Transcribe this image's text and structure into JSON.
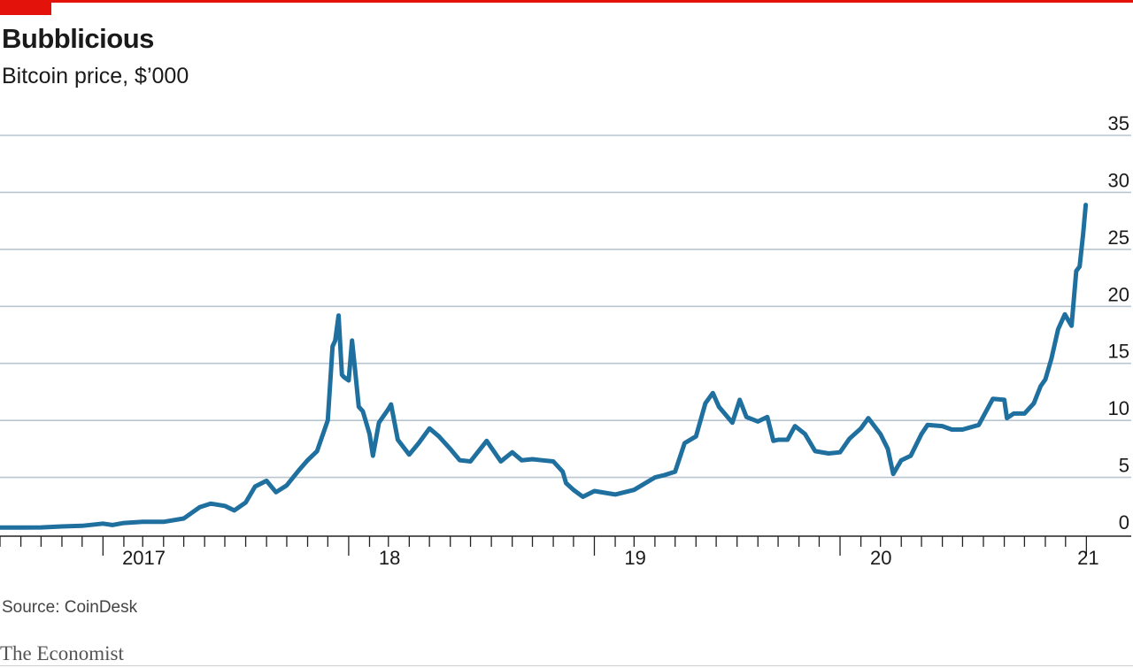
{
  "header": {
    "title": "Bubblicious",
    "subtitle": "Bitcoin price, $’000"
  },
  "footer": {
    "source": "Source: CoinDesk",
    "brand": "The Economist"
  },
  "colors": {
    "accent": "#e3120b",
    "line": "#1f6f9f",
    "grid": "#b9c6d0",
    "axis": "#222222"
  },
  "chart_data": {
    "type": "line",
    "title": "Bubblicious",
    "subtitle": "Bitcoin price, $’000",
    "ylabel": "",
    "xlabel": "",
    "ylim": [
      0,
      35
    ],
    "y_ticks": [
      0,
      5,
      10,
      15,
      20,
      25,
      30,
      35
    ],
    "y_tick_labels": [
      "0",
      "5",
      "10",
      "15",
      "20",
      "25",
      "30",
      "35"
    ],
    "x_range": [
      "2016-08-01",
      "2021-01-15"
    ],
    "x_ticks": [
      "2017-01-01",
      "2018-01-01",
      "2019-01-01",
      "2020-01-01",
      "2021-01-01"
    ],
    "x_tick_labels": [
      "2017",
      "18",
      "19",
      "20",
      "21"
    ],
    "grid": true,
    "legend": "none",
    "series": [
      {
        "x": [
          "2016-08-01",
          "2016-09-01",
          "2016-10-01",
          "2016-11-01",
          "2016-12-01",
          "2017-01-01",
          "2017-01-15",
          "2017-02-01",
          "2017-03-01",
          "2017-04-01",
          "2017-05-01",
          "2017-05-25",
          "2017-06-10",
          "2017-07-01",
          "2017-07-15",
          "2017-08-01",
          "2017-08-15",
          "2017-09-01",
          "2017-09-15",
          "2017-10-01",
          "2017-10-20",
          "2017-11-01",
          "2017-11-15",
          "2017-12-01",
          "2017-12-08",
          "2017-12-12",
          "2017-12-17",
          "2017-12-22",
          "2017-12-25",
          "2018-01-01",
          "2018-01-06",
          "2018-01-10",
          "2018-01-16",
          "2018-01-22",
          "2018-02-01",
          "2018-02-06",
          "2018-02-15",
          "2018-03-01",
          "2018-03-05",
          "2018-03-15",
          "2018-04-01",
          "2018-04-15",
          "2018-05-01",
          "2018-05-15",
          "2018-06-01",
          "2018-06-15",
          "2018-07-01",
          "2018-07-25",
          "2018-08-15",
          "2018-09-01",
          "2018-09-15",
          "2018-10-01",
          "2018-10-15",
          "2018-11-01",
          "2018-11-15",
          "2018-11-20",
          "2018-12-01",
          "2018-12-15",
          "2019-01-01",
          "2019-02-01",
          "2019-03-01",
          "2019-04-01",
          "2019-04-15",
          "2019-05-01",
          "2019-05-15",
          "2019-06-01",
          "2019-06-15",
          "2019-06-26",
          "2019-07-05",
          "2019-07-15",
          "2019-07-25",
          "2019-08-05",
          "2019-08-15",
          "2019-09-01",
          "2019-09-15",
          "2019-09-24",
          "2019-10-01",
          "2019-10-15",
          "2019-10-26",
          "2019-11-10",
          "2019-11-25",
          "2019-12-15",
          "2020-01-01",
          "2020-01-15",
          "2020-02-01",
          "2020-02-12",
          "2020-03-01",
          "2020-03-12",
          "2020-03-20",
          "2020-04-01",
          "2020-04-15",
          "2020-05-01",
          "2020-05-10",
          "2020-06-01",
          "2020-06-15",
          "2020-07-01",
          "2020-07-25",
          "2020-08-15",
          "2020-09-01",
          "2020-09-05",
          "2020-09-15",
          "2020-10-01",
          "2020-10-15",
          "2020-10-25",
          "2020-11-01",
          "2020-11-10",
          "2020-11-20",
          "2020-11-30",
          "2020-12-10",
          "2020-12-17",
          "2020-12-22",
          "2020-12-27",
          "2020-12-31"
        ],
        "values": [
          0.6,
          0.6,
          0.61,
          0.7,
          0.75,
          0.95,
          0.82,
          1.0,
          1.1,
          1.1,
          1.4,
          2.4,
          2.7,
          2.5,
          2.1,
          2.8,
          4.2,
          4.7,
          3.7,
          4.3,
          5.7,
          6.5,
          7.3,
          10.0,
          16.5,
          17.0,
          19.2,
          14.0,
          13.8,
          13.5,
          17.0,
          14.7,
          11.2,
          10.8,
          8.8,
          6.9,
          9.8,
          11.0,
          11.4,
          8.3,
          7.0,
          8.0,
          9.3,
          8.6,
          7.5,
          6.5,
          6.4,
          8.2,
          6.4,
          7.2,
          6.5,
          6.6,
          6.5,
          6.4,
          5.5,
          4.5,
          3.9,
          3.3,
          3.8,
          3.5,
          3.9,
          5.0,
          5.2,
          5.5,
          8.0,
          8.6,
          11.5,
          12.4,
          11.2,
          10.5,
          9.8,
          11.8,
          10.3,
          9.9,
          10.3,
          8.2,
          8.3,
          8.3,
          9.5,
          8.8,
          7.3,
          7.1,
          7.2,
          8.4,
          9.3,
          10.2,
          8.8,
          7.5,
          5.3,
          6.5,
          6.9,
          8.8,
          9.6,
          9.5,
          9.2,
          9.2,
          9.6,
          11.9,
          11.8,
          10.2,
          10.6,
          10.6,
          11.5,
          13.0,
          13.6,
          15.4,
          18.0,
          19.3,
          18.3,
          23.1,
          23.5,
          26.3,
          28.9
        ]
      }
    ]
  }
}
